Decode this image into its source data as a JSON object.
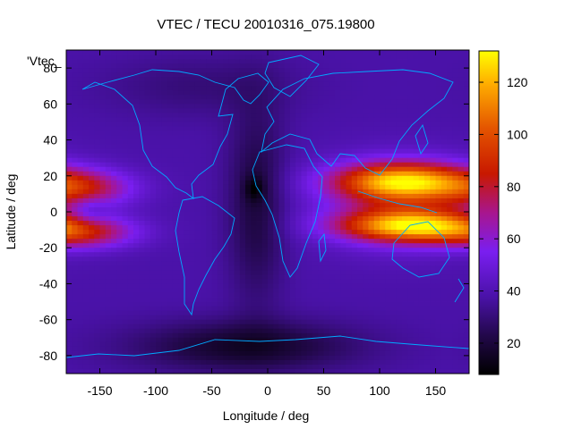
{
  "chart_data": {
    "type": "heatmap",
    "title": "VTEC / TECU 20010316_075.19800",
    "legend_label": "'Vtec_",
    "xlabel": "Longitude / deg",
    "ylabel": "Latitude / deg",
    "xlim": [
      -180,
      180
    ],
    "ylim": [
      -90,
      90
    ],
    "x_ticks": [
      -150,
      -100,
      -50,
      0,
      50,
      100,
      150
    ],
    "y_ticks": [
      -80,
      -60,
      -40,
      -20,
      0,
      20,
      40,
      60,
      80
    ],
    "colorbar": {
      "range": [
        8,
        132
      ],
      "ticks": [
        20,
        40,
        60,
        80,
        100,
        120
      ]
    },
    "grid": false,
    "background_level": 38,
    "features": [
      {
        "name": "asian-pacific-northern-crest",
        "lon": 120,
        "lat": 17,
        "sigma_lon": 42,
        "sigma_lat": 7,
        "amp": 70
      },
      {
        "name": "asian-pacific-southern-crest",
        "lon": 128,
        "lat": -8,
        "sigma_lon": 44,
        "sigma_lat": 6,
        "amp": 72
      },
      {
        "name": "asian-pacific-equator-band",
        "lon": 120,
        "lat": 5,
        "sigma_lon": 48,
        "sigma_lat": 16,
        "amp": 32
      },
      {
        "name": "pacific-northern-crest",
        "lon": -165,
        "lat": 13,
        "sigma_lon": 32,
        "sigma_lat": 7,
        "amp": 35
      },
      {
        "name": "pacific-southern-crest",
        "lon": -165,
        "lat": -12,
        "sigma_lon": 34,
        "sigma_lat": 6,
        "amp": 35
      },
      {
        "name": "pacific-trough",
        "lon": -160,
        "lat": 0,
        "sigma_lon": 12,
        "sigma_lat": 6,
        "amp": -12
      },
      {
        "name": "atlantic-low",
        "lon": -10,
        "lat": 5,
        "sigma_lon": 18,
        "sigma_lat": 38,
        "amp": -18
      },
      {
        "name": "atlantic-spot",
        "lon": -12,
        "lat": 13,
        "sigma_lon": 6,
        "sigma_lat": 5,
        "amp": -14
      },
      {
        "name": "southern-low",
        "lon": -20,
        "lat": -75,
        "sigma_lon": 70,
        "sigma_lat": 10,
        "amp": -22
      },
      {
        "name": "arctic-low",
        "lon": -60,
        "lat": 70,
        "sigma_lon": 60,
        "sigma_lat": 12,
        "amp": -8
      }
    ]
  }
}
